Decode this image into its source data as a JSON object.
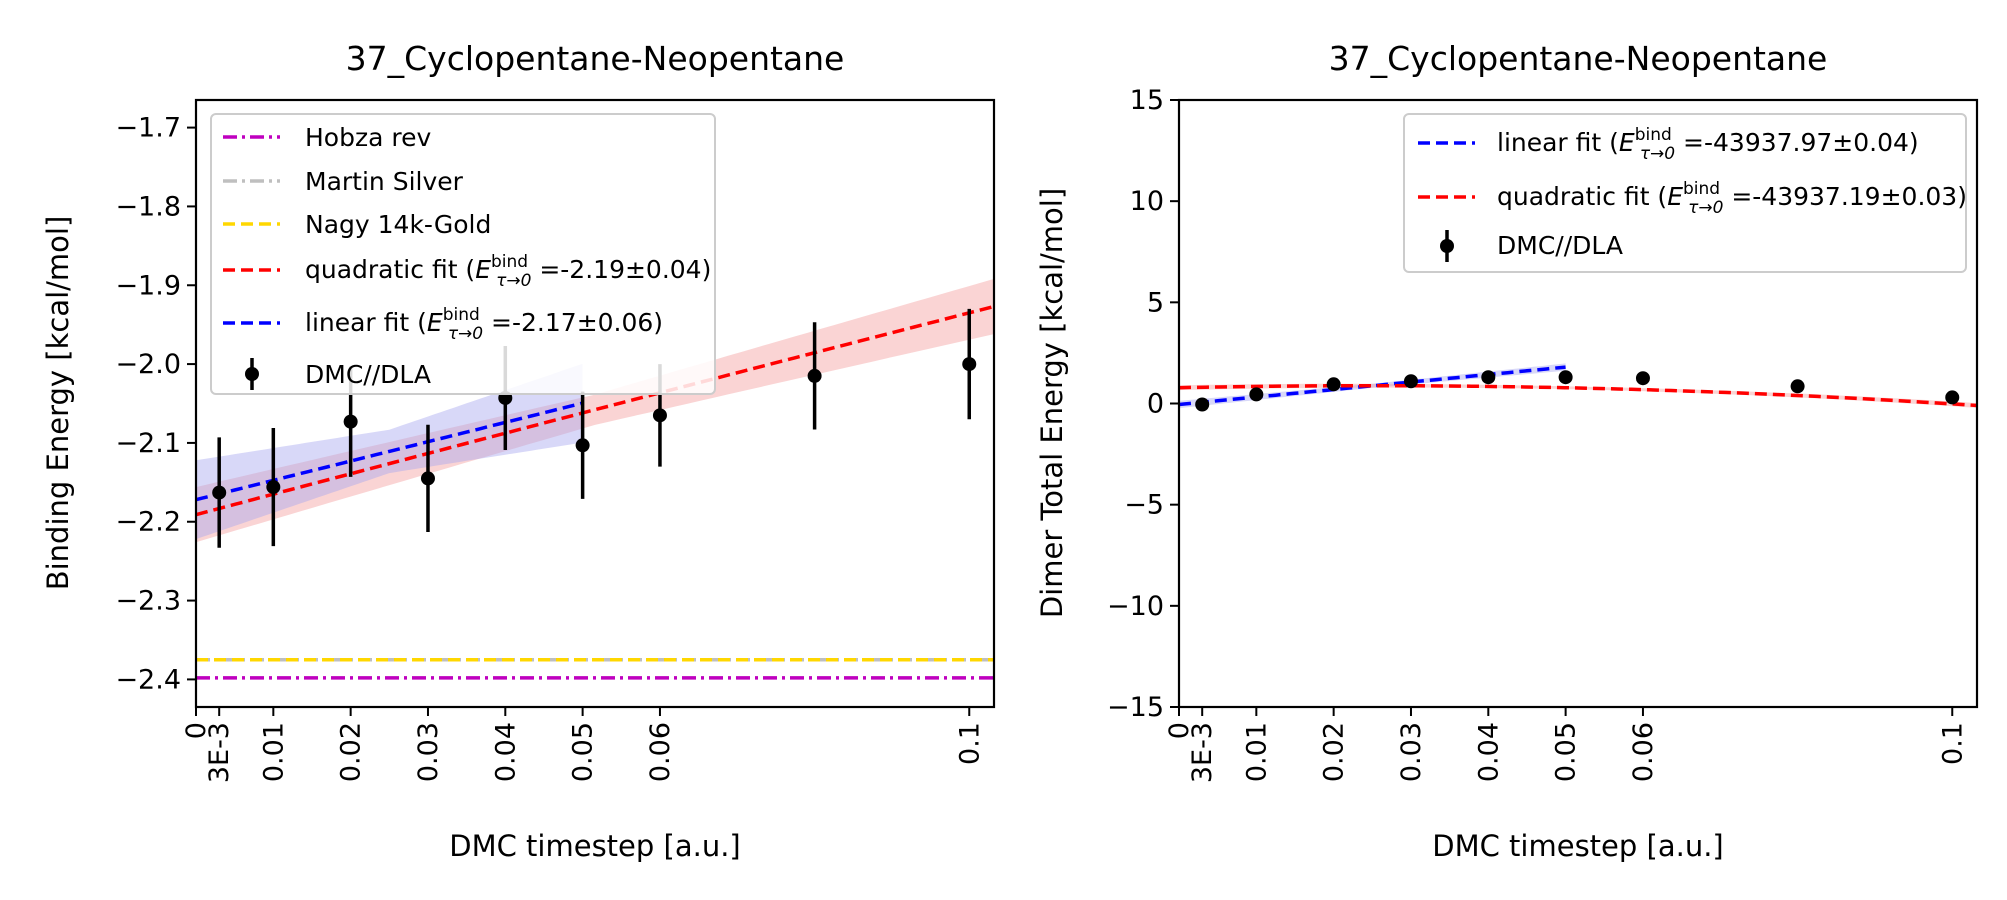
{
  "chart_data": [
    {
      "type": "line",
      "title": "37_Cyclopentane-Neopentane",
      "xlabel": "DMC timestep [a.u.]",
      "ylabel": "Binding Energy [kcal/mol]",
      "xlim": [
        0,
        0.1032
      ],
      "ylim": [
        -2.435,
        -1.665
      ],
      "x_ticks": [
        0,
        0.003,
        0.01,
        0.02,
        0.03,
        0.04,
        0.05,
        0.06,
        0.1
      ],
      "x_tick_labels": [
        "0",
        "3E-3",
        "0.01",
        "0.02",
        "0.03",
        "0.04",
        "0.05",
        "0.06",
        "0.1"
      ],
      "y_ticks": [
        -2.4,
        -2.3,
        -2.2,
        -2.1,
        -2.0,
        -1.9,
        -1.8,
        -1.7
      ],
      "y_tick_labels": [
        "−2.4",
        "−2.3",
        "−2.2",
        "−2.1",
        "−2.0",
        "−1.9",
        "−1.8",
        "−1.7"
      ],
      "legend_position": "upper-left",
      "reference_lines": [
        {
          "name": "Hobza rev",
          "y": -2.398,
          "color": "#bf00bf",
          "style": "dashdot"
        },
        {
          "name": "Martin Silver",
          "y": -2.375,
          "color": "#bfbfbf",
          "style": "dashdot"
        },
        {
          "name": "Nagy 14k-Gold",
          "y": -2.375,
          "color": "#ffd700",
          "style": "dashed"
        }
      ],
      "fits": [
        {
          "name_prefix": "quadratic fit (",
          "name_suffix": " =-2.19±0.04)",
          "kind": "quadratic",
          "coeffs": [
            -2.191,
            2.6,
            -0.4
          ],
          "x_range": [
            0,
            0.1032
          ],
          "band": 0.035,
          "color": "#ff0000",
          "band_color": "#f4a0a0"
        },
        {
          "name_prefix": "linear fit (",
          "name_suffix": " =-2.17±0.06)",
          "kind": "linear",
          "coeffs": [
            -2.172,
            2.45
          ],
          "x_range": [
            0,
            0.05
          ],
          "band": 0.05,
          "color": "#0000ff",
          "band_color": "#a8a8f0"
        }
      ],
      "points": {
        "name": "DMC//DLA",
        "x": [
          0.003,
          0.01,
          0.02,
          0.03,
          0.04,
          0.05,
          0.06,
          0.08,
          0.1
        ],
        "y": [
          -2.163,
          -2.156,
          -2.073,
          -2.145,
          -2.043,
          -2.103,
          -2.065,
          -2.015,
          -2.0
        ],
        "err": [
          0.07,
          0.075,
          0.07,
          0.068,
          0.066,
          0.068,
          0.065,
          0.068,
          0.07
        ]
      }
    },
    {
      "type": "line",
      "title": "37_Cyclopentane-Neopentane",
      "xlabel": "DMC timestep [a.u.]",
      "ylabel": "Dimer Total Energy [kcal/mol]",
      "xlim": [
        0,
        0.1032
      ],
      "ylim": [
        -15,
        15
      ],
      "x_ticks": [
        0,
        0.003,
        0.01,
        0.02,
        0.03,
        0.04,
        0.05,
        0.06,
        0.1
      ],
      "x_tick_labels": [
        "0",
        "3E-3",
        "0.01",
        "0.02",
        "0.03",
        "0.04",
        "0.05",
        "0.06",
        "0.1"
      ],
      "y_ticks": [
        -15,
        -10,
        -5,
        0,
        5,
        10,
        15
      ],
      "y_tick_labels": [
        "−15",
        "−10",
        "−5",
        "0",
        "5",
        "10",
        "15"
      ],
      "legend_position": "upper-right",
      "reference_lines": [],
      "fits": [
        {
          "name_prefix": "linear fit (",
          "name_suffix": " =-43937.97±0.04)",
          "kind": "linear",
          "coeffs": [
            -0.05,
            37.0
          ],
          "x_range": [
            0,
            0.05
          ],
          "band": 0.18,
          "color": "#0000ff",
          "band_color": "#a8a8f0"
        },
        {
          "name_prefix": "quadratic fit (",
          "name_suffix": " =-43937.19±0.03)",
          "kind": "quadratic",
          "coeffs": [
            0.78,
            8.0,
            -160.0
          ],
          "x_range": [
            0,
            0.1032
          ],
          "band": 0.12,
          "color": "#ff0000",
          "band_color": "#f4a0a0"
        }
      ],
      "points": {
        "name": "DMC//DLA",
        "x": [
          0.003,
          0.01,
          0.02,
          0.03,
          0.04,
          0.05,
          0.06,
          0.08,
          0.1
        ],
        "y": [
          -0.05,
          0.45,
          0.95,
          1.1,
          1.3,
          1.3,
          1.25,
          0.85,
          0.3
        ],
        "err": [
          0.1,
          0.1,
          0.1,
          0.1,
          0.1,
          0.1,
          0.1,
          0.1,
          0.1
        ]
      }
    }
  ]
}
